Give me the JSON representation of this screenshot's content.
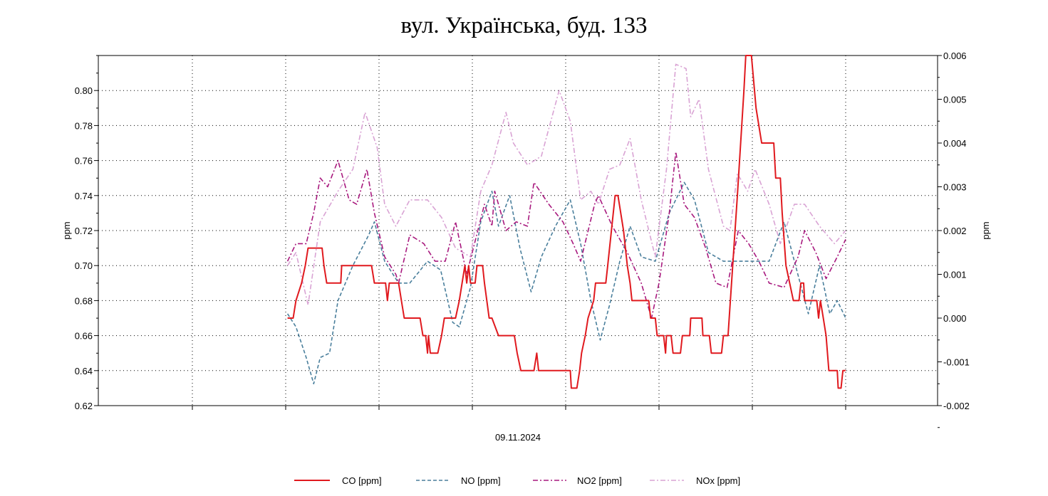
{
  "chart_data": {
    "type": "line",
    "title": "вул. Українська, буд. 133",
    "xlabel": "09.11.2024",
    "ylabel_left": "ppm",
    "ylabel_right": "ppm",
    "ylim_left": [
      0.62,
      0.82
    ],
    "ylim_right": [
      -0.002,
      0.006
    ],
    "xlim": [
      -2,
      7
    ],
    "yticks_left": [
      "0.62",
      "0.64",
      "0.66",
      "0.68",
      "0.70",
      "0.72",
      "0.74",
      "0.76",
      "0.78",
      "0.80"
    ],
    "yticks_right": [
      "-0.002",
      "-0.001",
      "0.000",
      "0.001",
      "0.002",
      "0.003",
      "0.004",
      "0.005",
      "0.006"
    ],
    "grid": true,
    "legend_position": "bottom",
    "series": [
      {
        "name": "CO [ppm]",
        "axis": "left",
        "color": "#e0191e",
        "style": "solid",
        "points": [
          [
            0.02,
            0.67
          ],
          [
            0.08,
            0.67
          ],
          [
            0.11,
            0.68
          ],
          [
            0.17,
            0.69
          ],
          [
            0.21,
            0.7
          ],
          [
            0.24,
            0.71
          ],
          [
            0.39,
            0.71
          ],
          [
            0.41,
            0.7
          ],
          [
            0.44,
            0.69
          ],
          [
            0.59,
            0.69
          ],
          [
            0.6,
            0.7
          ],
          [
            0.92,
            0.7
          ],
          [
            0.95,
            0.69
          ],
          [
            1.07,
            0.69
          ],
          [
            1.09,
            0.68
          ],
          [
            1.11,
            0.69
          ],
          [
            1.21,
            0.69
          ],
          [
            1.24,
            0.68
          ],
          [
            1.27,
            0.67
          ],
          [
            1.44,
            0.67
          ],
          [
            1.47,
            0.66
          ],
          [
            1.5,
            0.66
          ],
          [
            1.52,
            0.65
          ],
          [
            1.53,
            0.66
          ],
          [
            1.55,
            0.65
          ],
          [
            1.63,
            0.65
          ],
          [
            1.67,
            0.66
          ],
          [
            1.7,
            0.67
          ],
          [
            1.82,
            0.67
          ],
          [
            1.86,
            0.68
          ],
          [
            1.89,
            0.69
          ],
          [
            1.92,
            0.7
          ],
          [
            1.94,
            0.69
          ],
          [
            1.96,
            0.7
          ],
          [
            1.98,
            0.69
          ],
          [
            2.03,
            0.69
          ],
          [
            2.05,
            0.7
          ],
          [
            2.11,
            0.7
          ],
          [
            2.13,
            0.69
          ],
          [
            2.18,
            0.67
          ],
          [
            2.21,
            0.67
          ],
          [
            2.28,
            0.66
          ],
          [
            2.45,
            0.66
          ],
          [
            2.48,
            0.65
          ],
          [
            2.52,
            0.64
          ],
          [
            2.66,
            0.64
          ],
          [
            2.69,
            0.65
          ],
          [
            2.71,
            0.64
          ],
          [
            3.05,
            0.64
          ],
          [
            3.06,
            0.63
          ],
          [
            3.12,
            0.63
          ],
          [
            3.15,
            0.64
          ],
          [
            3.17,
            0.65
          ],
          [
            3.21,
            0.66
          ],
          [
            3.24,
            0.67
          ],
          [
            3.3,
            0.68
          ],
          [
            3.32,
            0.69
          ],
          [
            3.43,
            0.69
          ],
          [
            3.45,
            0.7
          ],
          [
            3.49,
            0.72
          ],
          [
            3.53,
            0.74
          ],
          [
            3.56,
            0.74
          ],
          [
            3.62,
            0.72
          ],
          [
            3.66,
            0.7
          ],
          [
            3.69,
            0.69
          ],
          [
            3.71,
            0.68
          ],
          [
            3.89,
            0.68
          ],
          [
            3.91,
            0.67
          ],
          [
            3.96,
            0.67
          ],
          [
            3.98,
            0.66
          ],
          [
            4.05,
            0.66
          ],
          [
            4.07,
            0.65
          ],
          [
            4.08,
            0.66
          ],
          [
            4.13,
            0.66
          ],
          [
            4.15,
            0.65
          ],
          [
            4.23,
            0.65
          ],
          [
            4.25,
            0.66
          ],
          [
            4.33,
            0.66
          ],
          [
            4.34,
            0.67
          ],
          [
            4.46,
            0.67
          ],
          [
            4.47,
            0.66
          ],
          [
            4.54,
            0.66
          ],
          [
            4.56,
            0.65
          ],
          [
            4.67,
            0.65
          ],
          [
            4.69,
            0.66
          ],
          [
            4.74,
            0.66
          ],
          [
            4.84,
            0.74
          ],
          [
            4.91,
            0.8
          ],
          [
            4.93,
            0.82
          ],
          [
            4.99,
            0.82
          ],
          [
            5.04,
            0.79
          ],
          [
            5.1,
            0.77
          ],
          [
            5.23,
            0.77
          ],
          [
            5.25,
            0.75
          ],
          [
            5.3,
            0.75
          ],
          [
            5.32,
            0.73
          ],
          [
            5.36,
            0.7
          ],
          [
            5.4,
            0.69
          ],
          [
            5.44,
            0.68
          ],
          [
            5.5,
            0.68
          ],
          [
            5.52,
            0.69
          ],
          [
            5.55,
            0.69
          ],
          [
            5.56,
            0.68
          ],
          [
            5.69,
            0.68
          ],
          [
            5.71,
            0.67
          ],
          [
            5.73,
            0.68
          ],
          [
            5.76,
            0.67
          ],
          [
            5.79,
            0.66
          ],
          [
            5.82,
            0.64
          ],
          [
            5.85,
            0.64
          ],
          [
            5.91,
            0.64
          ],
          [
            5.92,
            0.63
          ],
          [
            5.95,
            0.63
          ],
          [
            5.97,
            0.64
          ],
          [
            6.0,
            0.64
          ]
        ]
      },
      {
        "name": "NO [ppm]",
        "axis": "right",
        "color": "#4a7f9c",
        "style": "dash",
        "points": [
          [
            0.02,
            0.0001
          ],
          [
            0.11,
            -0.0002
          ],
          [
            0.22,
            -0.0009
          ],
          [
            0.3,
            -0.0015
          ],
          [
            0.37,
            -0.0009
          ],
          [
            0.47,
            -0.0008
          ],
          [
            0.56,
            0.0004
          ],
          [
            0.72,
            0.0012
          ],
          [
            0.89,
            0.0019
          ],
          [
            0.95,
            0.0022
          ],
          [
            1.06,
            0.0013
          ],
          [
            1.21,
            0.0008
          ],
          [
            1.33,
            0.0008
          ],
          [
            1.52,
            0.0013
          ],
          [
            1.66,
            0.0011
          ],
          [
            1.79,
            -0.0001
          ],
          [
            1.86,
            -0.0002
          ],
          [
            1.98,
            0.0007
          ],
          [
            2.09,
            0.0022
          ],
          [
            2.21,
            0.0029
          ],
          [
            2.28,
            0.0021
          ],
          [
            2.4,
            0.0028
          ],
          [
            2.51,
            0.0016
          ],
          [
            2.63,
            0.0006
          ],
          [
            2.74,
            0.0014
          ],
          [
            2.89,
            0.0021
          ],
          [
            3.05,
            0.0027
          ],
          [
            3.16,
            0.0017
          ],
          [
            3.27,
            0.0004
          ],
          [
            3.37,
            -0.0005
          ],
          [
            3.47,
            0.0003
          ],
          [
            3.58,
            0.0013
          ],
          [
            3.69,
            0.0021
          ],
          [
            3.81,
            0.0014
          ],
          [
            3.96,
            0.0013
          ],
          [
            4.11,
            0.0024
          ],
          [
            4.27,
            0.0031
          ],
          [
            4.38,
            0.0027
          ],
          [
            4.53,
            0.0015
          ],
          [
            4.69,
            0.0013
          ],
          [
            4.88,
            0.0013
          ],
          [
            5.03,
            0.0013
          ],
          [
            5.18,
            0.0013
          ],
          [
            5.34,
            0.0022
          ],
          [
            5.45,
            0.0013
          ],
          [
            5.6,
            0.0001
          ],
          [
            5.72,
            0.0012
          ],
          [
            5.83,
            0.0001
          ],
          [
            5.91,
            0.0004
          ],
          [
            6.0,
            0.0
          ]
        ]
      },
      {
        "name": "NO2 [ppm]",
        "axis": "right",
        "color": "#a8197e",
        "style": "dashdot",
        "points": [
          [
            0.02,
            0.0013
          ],
          [
            0.11,
            0.0017
          ],
          [
            0.22,
            0.0017
          ],
          [
            0.3,
            0.0024
          ],
          [
            0.37,
            0.0032
          ],
          [
            0.45,
            0.003
          ],
          [
            0.56,
            0.0036
          ],
          [
            0.68,
            0.0027
          ],
          [
            0.76,
            0.0026
          ],
          [
            0.87,
            0.0034
          ],
          [
            0.95,
            0.0024
          ],
          [
            1.06,
            0.0014
          ],
          [
            1.18,
            0.001
          ],
          [
            1.21,
            0.0008
          ],
          [
            1.33,
            0.0019
          ],
          [
            1.48,
            0.0017
          ],
          [
            1.6,
            0.0013
          ],
          [
            1.71,
            0.0013
          ],
          [
            1.82,
            0.0022
          ],
          [
            1.94,
            0.001
          ],
          [
            2.13,
            0.0026
          ],
          [
            2.21,
            0.0021
          ],
          [
            2.24,
            0.0029
          ],
          [
            2.36,
            0.002
          ],
          [
            2.47,
            0.0022
          ],
          [
            2.59,
            0.0021
          ],
          [
            2.66,
            0.0031
          ],
          [
            2.82,
            0.0026
          ],
          [
            2.97,
            0.0022
          ],
          [
            3.08,
            0.0017
          ],
          [
            3.16,
            0.0013
          ],
          [
            3.31,
            0.0026
          ],
          [
            3.35,
            0.0028
          ],
          [
            3.5,
            0.0021
          ],
          [
            3.66,
            0.0015
          ],
          [
            3.81,
            0.0008
          ],
          [
            3.92,
            0.0
          ],
          [
            4.0,
            0.0008
          ],
          [
            4.11,
            0.0024
          ],
          [
            4.18,
            0.0038
          ],
          [
            4.27,
            0.0026
          ],
          [
            4.38,
            0.0023
          ],
          [
            4.5,
            0.0016
          ],
          [
            4.61,
            0.0008
          ],
          [
            4.73,
            0.0007
          ],
          [
            4.85,
            0.002
          ],
          [
            4.96,
            0.0017
          ],
          [
            5.07,
            0.0013
          ],
          [
            5.18,
            0.0008
          ],
          [
            5.34,
            0.0007
          ],
          [
            5.49,
            0.0014
          ],
          [
            5.56,
            0.002
          ],
          [
            5.68,
            0.0015
          ],
          [
            5.79,
            0.0009
          ],
          [
            5.91,
            0.0014
          ],
          [
            6.0,
            0.0018
          ]
        ]
      },
      {
        "name": "NOx [ppm]",
        "axis": "right",
        "color": "#d9a3d4",
        "style": "dashdot",
        "points": [
          [
            0.02,
            0.0012
          ],
          [
            0.11,
            0.0015
          ],
          [
            0.24,
            0.0003
          ],
          [
            0.37,
            0.0022
          ],
          [
            0.56,
            0.0029
          ],
          [
            0.72,
            0.0034
          ],
          [
            0.85,
            0.0047
          ],
          [
            0.98,
            0.0039
          ],
          [
            1.06,
            0.0026
          ],
          [
            1.18,
            0.0021
          ],
          [
            1.33,
            0.0027
          ],
          [
            1.52,
            0.0027
          ],
          [
            1.67,
            0.0023
          ],
          [
            1.82,
            0.0016
          ],
          [
            1.98,
            0.0014
          ],
          [
            2.09,
            0.0029
          ],
          [
            2.21,
            0.0035
          ],
          [
            2.36,
            0.0047
          ],
          [
            2.44,
            0.004
          ],
          [
            2.59,
            0.0035
          ],
          [
            2.74,
            0.0037
          ],
          [
            2.93,
            0.0052
          ],
          [
            3.05,
            0.0045
          ],
          [
            3.16,
            0.0027
          ],
          [
            3.27,
            0.0029
          ],
          [
            3.35,
            0.0026
          ],
          [
            3.47,
            0.0034
          ],
          [
            3.58,
            0.0035
          ],
          [
            3.69,
            0.0041
          ],
          [
            3.81,
            0.0027
          ],
          [
            3.96,
            0.0014
          ],
          [
            4.08,
            0.0034
          ],
          [
            4.18,
            0.0058
          ],
          [
            4.29,
            0.0057
          ],
          [
            4.34,
            0.0046
          ],
          [
            4.43,
            0.005
          ],
          [
            4.53,
            0.0034
          ],
          [
            4.69,
            0.0021
          ],
          [
            4.76,
            0.002
          ],
          [
            4.84,
            0.0033
          ],
          [
            4.95,
            0.0029
          ],
          [
            5.03,
            0.0034
          ],
          [
            5.18,
            0.0026
          ],
          [
            5.3,
            0.0017
          ],
          [
            5.45,
            0.0026
          ],
          [
            5.56,
            0.0026
          ],
          [
            5.72,
            0.0021
          ],
          [
            5.88,
            0.0017
          ],
          [
            6.0,
            0.002
          ]
        ]
      }
    ]
  }
}
